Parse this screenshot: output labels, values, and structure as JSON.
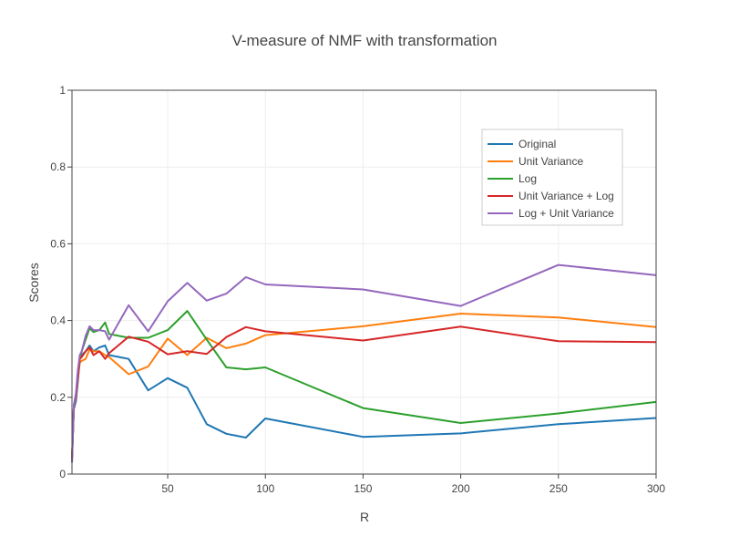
{
  "chart_data": {
    "type": "line",
    "title": "V-measure of NMF with transformation",
    "xlabel": "R",
    "ylabel": "Scores",
    "xlim": [
      1,
      300
    ],
    "ylim": [
      0,
      1
    ],
    "x_ticks": [
      50,
      100,
      150,
      200,
      250,
      300
    ],
    "y_ticks": [
      0,
      0.2,
      0.4,
      0.6,
      0.8,
      1
    ],
    "y_tick_labels": [
      "0",
      "0.2",
      "0.4",
      "0.6",
      "0.8",
      "1"
    ],
    "grid": true,
    "legend_position": "top-right",
    "x": [
      1,
      2,
      3,
      4,
      5,
      6,
      8,
      10,
      12,
      15,
      18,
      20,
      30,
      40,
      50,
      60,
      70,
      80,
      90,
      100,
      150,
      200,
      250,
      300
    ],
    "series": [
      {
        "name": "Original",
        "color": "#1f77b4",
        "values": [
          0.04,
          0.17,
          0.19,
          0.24,
          0.3,
          0.31,
          0.32,
          0.335,
          0.32,
          0.33,
          0.335,
          0.31,
          0.3,
          0.218,
          0.25,
          0.225,
          0.13,
          0.105,
          0.095,
          0.145,
          0.097,
          0.106,
          0.13,
          0.146
        ]
      },
      {
        "name": "Unit Variance",
        "color": "#ff7f0e",
        "values": [
          0.04,
          0.18,
          0.2,
          0.25,
          0.29,
          0.295,
          0.3,
          0.325,
          0.32,
          0.32,
          0.31,
          0.305,
          0.26,
          0.28,
          0.353,
          0.31,
          0.355,
          0.328,
          0.34,
          0.362,
          0.385,
          0.418,
          0.408,
          0.383
        ]
      },
      {
        "name": "Log",
        "color": "#2ca02c",
        "values": [
          0.03,
          0.18,
          0.2,
          0.25,
          0.3,
          0.32,
          0.35,
          0.38,
          0.37,
          0.375,
          0.395,
          0.365,
          0.355,
          0.355,
          0.375,
          0.425,
          0.35,
          0.278,
          0.273,
          0.278,
          0.172,
          0.133,
          0.158,
          0.188
        ]
      },
      {
        "name": "Unit Variance + Log",
        "color": "#d62728",
        "values": [
          0.04,
          0.18,
          0.2,
          0.25,
          0.3,
          0.305,
          0.32,
          0.33,
          0.31,
          0.32,
          0.3,
          0.315,
          0.358,
          0.345,
          0.312,
          0.32,
          0.313,
          0.357,
          0.383,
          0.372,
          0.348,
          0.384,
          0.346,
          0.344
        ]
      },
      {
        "name": "Log + Unit Variance",
        "color": "#9467bd",
        "values": [
          0.03,
          0.18,
          0.21,
          0.27,
          0.31,
          0.32,
          0.36,
          0.385,
          0.375,
          0.375,
          0.372,
          0.35,
          0.44,
          0.372,
          0.45,
          0.498,
          0.452,
          0.47,
          0.513,
          0.494,
          0.481,
          0.438,
          0.545,
          0.518
        ]
      }
    ]
  }
}
